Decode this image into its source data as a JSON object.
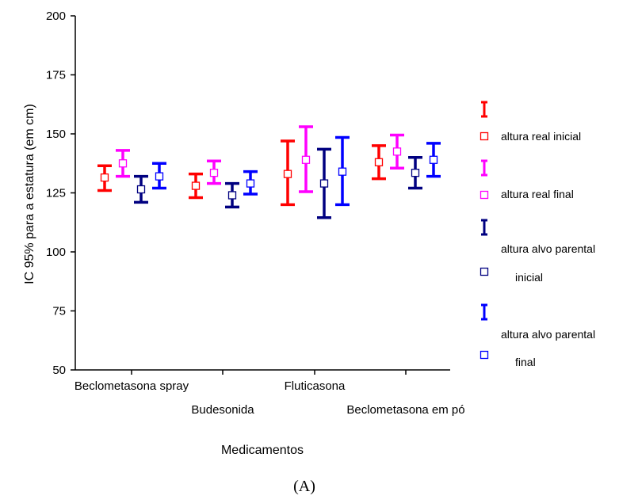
{
  "caption": "(A)",
  "chart_data": {
    "type": "error-bar",
    "xlabel": "Medicamentos",
    "ylabel": "IC 95% para a estatura (em cm)",
    "ylim": [
      50,
      200
    ],
    "yticks": [
      50,
      75,
      100,
      125,
      150,
      175,
      200
    ],
    "grid": false,
    "legend_position": "right",
    "categories": [
      "Beclometasona spray",
      "Budesonida",
      "Fluticasona",
      "Beclometasona em pó"
    ],
    "series": [
      {
        "name": "altura real inicial",
        "color": "#ff0000",
        "mean": [
          131.5,
          128,
          133,
          138
        ],
        "lower": [
          126,
          123,
          120,
          131
        ],
        "upper": [
          136.5,
          133,
          147,
          145
        ]
      },
      {
        "name": "altura real final",
        "color": "#ff00ff",
        "mean": [
          137.5,
          133.5,
          139,
          142.5
        ],
        "lower": [
          132,
          129,
          125.5,
          135.5
        ],
        "upper": [
          143,
          138.5,
          153,
          149.5
        ]
      },
      {
        "name": "altura alvo parental inicial",
        "color": "#000080",
        "mean": [
          126.5,
          124,
          129,
          133.5
        ],
        "lower": [
          121,
          119,
          114.5,
          127
        ],
        "upper": [
          132,
          129,
          143.5,
          140
        ]
      },
      {
        "name": "altura alvo parental final",
        "color": "#0000ff",
        "mean": [
          132,
          129,
          134,
          139
        ],
        "lower": [
          127,
          124.5,
          120,
          132
        ],
        "upper": [
          137.5,
          134,
          148.5,
          146
        ]
      }
    ]
  },
  "legend": [
    {
      "lines": [
        "altura real inicial"
      ]
    },
    {
      "lines": [
        "altura real final"
      ]
    },
    {
      "lines": [
        "altura alvo parental",
        "inicial"
      ]
    },
    {
      "lines": [
        "altura alvo parental",
        "final"
      ]
    }
  ]
}
